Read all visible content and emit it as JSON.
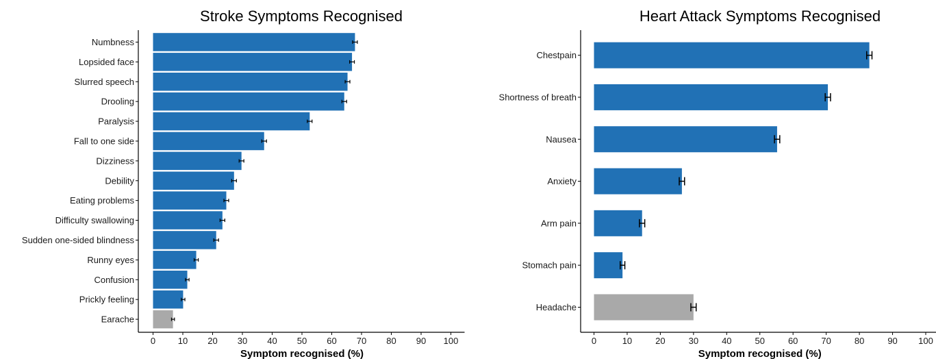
{
  "chart_data": [
    {
      "type": "bar",
      "orientation": "horizontal",
      "title": "Stroke Symptoms Recognised",
      "xlabel": "Symptom recognised (%)",
      "ylabel": "",
      "xlim": [
        0,
        100
      ],
      "xticks": [
        0,
        10,
        20,
        30,
        40,
        50,
        60,
        70,
        80,
        90,
        100
      ],
      "grid": false,
      "error_bars": true,
      "colors": {
        "primary": "#2171b5",
        "highlight": "#a9a9a9"
      },
      "categories": [
        "Numbness",
        "Lopsided face",
        "Slurred speech",
        "Drooling",
        "Paralysis",
        "Fall to one side",
        "Dizziness",
        "Debility",
        "Eating problems",
        "Difficulty swallowing",
        "Sudden one-sided blindness",
        "Runny eyes",
        "Confusion",
        "Prickly feeling",
        "Earache"
      ],
      "values": [
        67.8,
        66.8,
        65.3,
        64.2,
        52.6,
        37.3,
        29.7,
        27.2,
        24.6,
        23.3,
        21.2,
        14.5,
        11.5,
        10.1,
        6.7
      ],
      "errors": [
        0.8,
        0.8,
        0.8,
        0.8,
        0.8,
        0.8,
        0.8,
        0.8,
        0.8,
        0.8,
        0.8,
        0.7,
        0.6,
        0.6,
        0.5
      ],
      "colored_gray": [
        "Earache"
      ]
    },
    {
      "type": "bar",
      "orientation": "horizontal",
      "title": "Heart Attack Symptoms Recognised",
      "xlabel": "Symptom recognised (%)",
      "ylabel": "",
      "xlim": [
        0,
        100
      ],
      "xticks": [
        0,
        10,
        20,
        30,
        40,
        50,
        60,
        70,
        80,
        90,
        100
      ],
      "grid": false,
      "error_bars": true,
      "colors": {
        "primary": "#2171b5",
        "highlight": "#a9a9a9"
      },
      "categories": [
        "Chestpain",
        "Shortness of breath",
        "Nausea",
        "Anxiety",
        "Arm pain",
        "Stomach pain",
        "Headache"
      ],
      "values": [
        83,
        70.5,
        55.2,
        26.5,
        14.5,
        8.6,
        30
      ],
      "errors": [
        0.8,
        0.8,
        0.8,
        0.8,
        0.8,
        0.7,
        0.8
      ],
      "colored_gray": [
        "Headache"
      ]
    }
  ]
}
